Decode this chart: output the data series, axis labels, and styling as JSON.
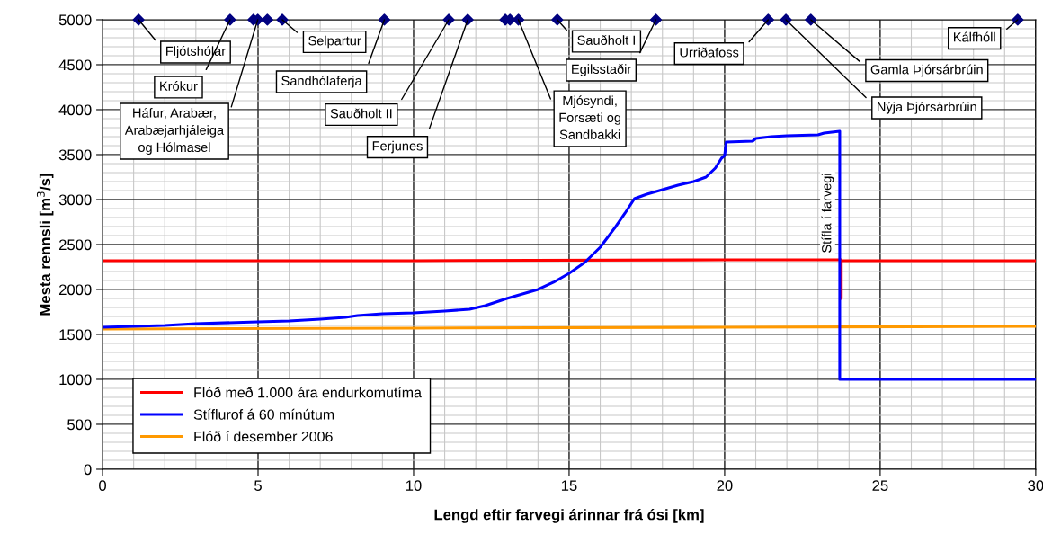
{
  "chart_data": {
    "type": "line",
    "xlabel": "Lengd eftir farvegi árinnar frá ósi [km]",
    "ylabel": "Mesta rennsli [m$^{3}$/s]",
    "xlim": [
      0,
      30
    ],
    "xticks": [
      0,
      5,
      10,
      15,
      20,
      25,
      30
    ],
    "ylim": [
      0,
      5000
    ],
    "yticks": [
      0,
      500,
      1000,
      1500,
      2000,
      2500,
      3000,
      3500,
      4000,
      4500,
      5000
    ],
    "grid": true,
    "legend": "bottom left",
    "line_style": "solid",
    "series": [
      {
        "name": "Flóð með 1.000 ára endurkomutíma",
        "color": "#ff0000",
        "x": [
          0,
          10,
          20,
          23.75,
          23.75,
          23.75,
          30
        ],
        "values": [
          2320,
          2320,
          2330,
          2330,
          1900,
          2320,
          2320
        ]
      },
      {
        "name": "Stíflurof á 60 mínútum",
        "color": "#0000ff",
        "x": [
          0,
          2,
          3,
          5,
          6,
          7,
          7.8,
          8.2,
          9,
          10,
          11,
          11.8,
          12.3,
          13,
          13.5,
          14,
          14.5,
          15,
          15.5,
          16,
          16.5,
          16.8,
          17.1,
          17.5,
          18,
          18.5,
          19,
          19.4,
          19.7,
          19.9,
          20.0,
          20.05,
          20.9,
          21.0,
          21.5,
          22.0,
          23.0,
          23.2,
          23.7,
          23.7,
          30
        ],
        "values": [
          1580,
          1600,
          1620,
          1640,
          1650,
          1670,
          1690,
          1710,
          1730,
          1740,
          1760,
          1780,
          1820,
          1900,
          1950,
          2000,
          2080,
          2180,
          2300,
          2470,
          2700,
          2850,
          3010,
          3060,
          3110,
          3160,
          3200,
          3250,
          3350,
          3460,
          3490,
          3640,
          3650,
          3680,
          3700,
          3710,
          3720,
          3740,
          3760,
          1000,
          1000
        ]
      },
      {
        "name": "Flóð í desember 2006",
        "color": "#ff9900",
        "x": [
          0,
          10,
          20,
          30
        ],
        "values": [
          1560,
          1570,
          1580,
          1590
        ]
      },
      {
        "type": "scatter",
        "color": "#000080",
        "marker": "diamond",
        "x": [
          1.16,
          4.1,
          4.85,
          4.99,
          5.3,
          5.78,
          9.06,
          11.13,
          11.74,
          12.95,
          13.1,
          13.37,
          14.62,
          17.79,
          21.4,
          21.97,
          22.77,
          29.42
        ],
        "values": [
          5000,
          5000,
          5000,
          5000,
          5000,
          5000,
          5000,
          5000,
          5000,
          5000,
          5000,
          5000,
          5000,
          5000,
          5000,
          5000,
          5000,
          5000
        ]
      }
    ],
    "annotations": [
      {
        "text": "Fljótshólar",
        "x": 1.16,
        "y": 5000
      },
      {
        "text": "Krókur",
        "x": 4.1,
        "y": 5000
      },
      {
        "text": "Háfur, Arabær,\nArabæjarhjáleiga\nog Hólmasel",
        "x": 4.99,
        "y": 5000
      },
      {
        "text": "Selpartur",
        "x": 5.78,
        "y": 5000
      },
      {
        "text": "Sandhólaferja",
        "x": 9.06,
        "y": 5000
      },
      {
        "text": "Sauðholt II",
        "x": 11.13,
        "y": 5000
      },
      {
        "text": "Ferjunes",
        "x": 11.74,
        "y": 5000
      },
      {
        "text": "Mjósyndi,\nForsæti og\nSandbakki",
        "x": 13.37,
        "y": 5000
      },
      {
        "text": "Sauðholt I",
        "x": 14.62,
        "y": 5000
      },
      {
        "text": "Egilsstaðir",
        "x": 17.79,
        "y": 5000
      },
      {
        "text": "Urriðafoss",
        "x": 21.4,
        "y": 5000
      },
      {
        "text": "Nýja Þjórsárbrúin",
        "x": 21.97,
        "y": 5000
      },
      {
        "text": "Gamla Þjórsárbrúin",
        "x": 22.77,
        "y": 5000
      },
      {
        "text": "Kálfhóll",
        "x": 29.42,
        "y": 5000
      },
      "Stífla í farvegi"
    ]
  }
}
